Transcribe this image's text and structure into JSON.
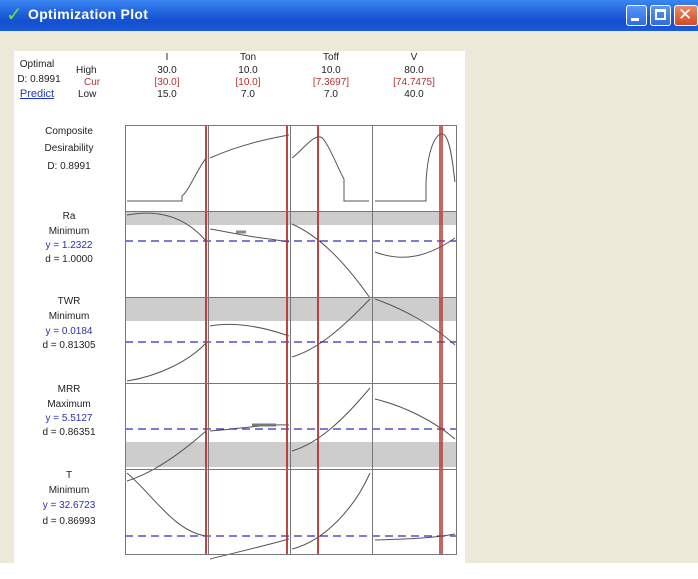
{
  "window": {
    "title": "Optimization Plot",
    "controls": {
      "minimize": "minimize",
      "maximize": "maximize",
      "close": "close"
    }
  },
  "header": {
    "optimal_label": "Optimal",
    "d_value": "D: 0.8991",
    "predict_link": "Predict",
    "high_label": "High",
    "cur_label": "Cur",
    "low_label": "Low"
  },
  "factors": [
    {
      "name": "I",
      "high": "30.0",
      "cur": "[30.0]",
      "low": "15.0",
      "cur_value": 30.0,
      "low_value": 15.0,
      "high_value": 30.0
    },
    {
      "name": "Ton",
      "high": "10.0",
      "cur": "[10.0]",
      "low": "7.0",
      "cur_value": 10.0,
      "low_value": 7.0,
      "high_value": 10.0
    },
    {
      "name": "Toff",
      "high": "10.0",
      "cur": "[7.3697]",
      "low": "7.0",
      "cur_value": 7.3697,
      "low_value": 7.0,
      "high_value": 10.0
    },
    {
      "name": "V",
      "high": "80.0",
      "cur": "[74.7475]",
      "low": "40.0",
      "cur_value": 74.7475,
      "low_value": 40.0,
      "high_value": 80.0
    }
  ],
  "rows": [
    {
      "title": "Composite",
      "line2": "Desirability",
      "y": "",
      "d": "D: 0.8991"
    },
    {
      "title": "Ra",
      "line2": "Minimum",
      "y": "y = 1.2322",
      "d": "d = 1.0000"
    },
    {
      "title": "TWR",
      "line2": "Minimum",
      "y": "y = 0.0184",
      "d": "d = 0.81305"
    },
    {
      "title": "MRR",
      "line2": "Maximum",
      "y": "y = 5.5127",
      "d": "d = 0.86351"
    },
    {
      "title": "T",
      "line2": "Minimum",
      "y": "y = 32.6723",
      "d": "d = 0.86993"
    }
  ],
  "colors": {
    "current_line": "#b7312c",
    "target_line": "#2a2fc0",
    "band": "#cdcdcd",
    "curve": "#555555"
  }
}
